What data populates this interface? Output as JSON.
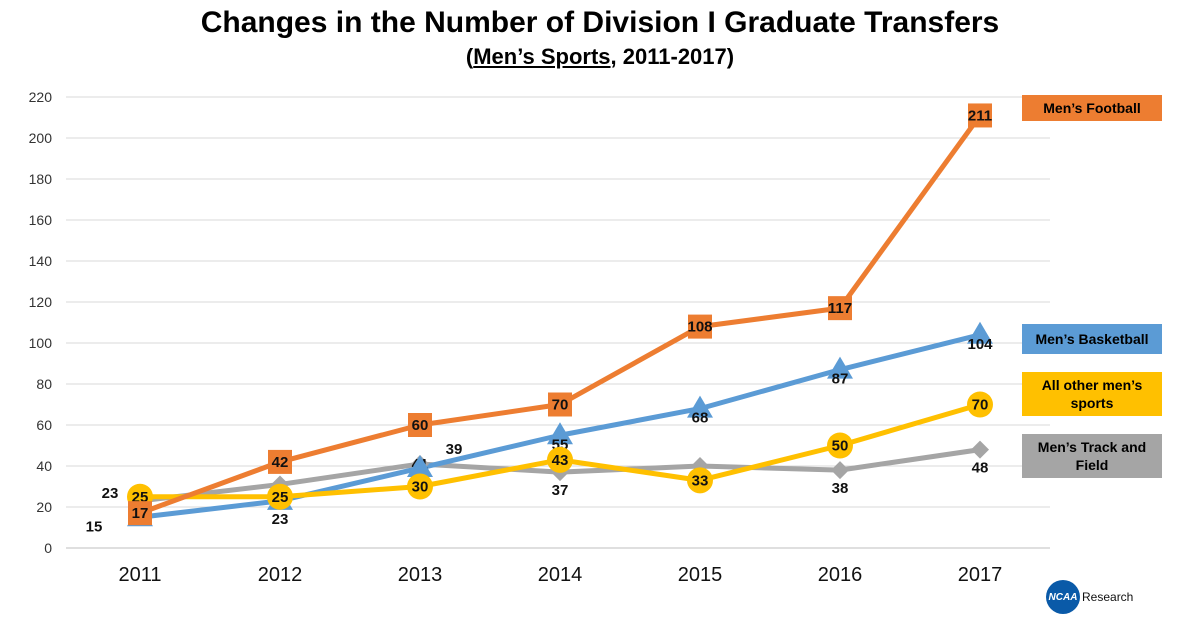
{
  "chart_data": {
    "type": "line",
    "title": "Changes in the Number of Division I Graduate Transfers",
    "subtitle_prefix": "(",
    "subtitle_underlined": "Men’s Sports",
    "subtitle_suffix": ", 2011-2017)",
    "categories": [
      "2011",
      "2012",
      "2013",
      "2014",
      "2015",
      "2016",
      "2017"
    ],
    "ylim": [
      0,
      220
    ],
    "yticks": [
      0,
      20,
      40,
      60,
      80,
      100,
      120,
      140,
      160,
      180,
      200,
      220
    ],
    "grid": true,
    "legend_position": "right",
    "series": [
      {
        "name": "Men’s Track and Field",
        "color": "#a5a5a5",
        "marker": "diamond",
        "values": [
          23,
          31,
          41,
          37,
          40,
          38,
          48
        ]
      },
      {
        "name": "Men’s Basketball",
        "color": "#5b9bd5",
        "marker": "triangle",
        "values": [
          15,
          23,
          39,
          55,
          68,
          87,
          104
        ]
      },
      {
        "name": "All other men’s sports",
        "color": "#ffc000",
        "marker": "circle",
        "values": [
          25,
          25,
          30,
          43,
          33,
          50,
          70
        ]
      },
      {
        "name": "Men’s Football",
        "color": "#ed7d31",
        "marker": "square",
        "values": [
          17,
          42,
          60,
          70,
          108,
          117,
          211
        ]
      }
    ]
  },
  "legend": {
    "football": "Men’s Football",
    "basketball": "Men’s Basketball",
    "other": "All other men’s sports",
    "track": "Men’s Track and Field"
  },
  "logo": {
    "mark": "NCAA",
    "text": "Research"
  }
}
